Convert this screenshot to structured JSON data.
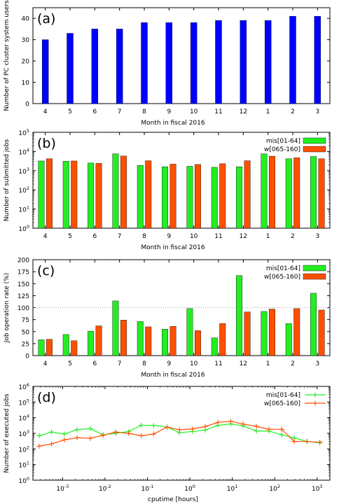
{
  "chart_data": [
    {
      "type": "bar",
      "panel_label": "(a)",
      "xlabel": "Month in fiscal 2016",
      "ylabel": "Number of PC cluster system users",
      "ylim": [
        0,
        45
      ],
      "yticks": [
        0,
        10,
        20,
        30,
        40
      ],
      "grid": false,
      "categories": [
        "4",
        "5",
        "6",
        "7",
        "8",
        "9",
        "10",
        "11",
        "12",
        "1",
        "2",
        "3"
      ],
      "series": [
        {
          "values": [
            30,
            33,
            35,
            35,
            38,
            38,
            38,
            39,
            39,
            39,
            41,
            41
          ],
          "color": "#0000ff"
        }
      ]
    },
    {
      "type": "bar",
      "panel_label": "(b)",
      "xlabel": "Month in fiscal 2016",
      "ylabel": "Number of submitted jobs",
      "yscale": "log",
      "ylim": [
        1,
        100000
      ],
      "yticks": [
        1,
        10,
        100,
        1000,
        10000,
        100000
      ],
      "ytick_labels": [
        [
          "10",
          "0"
        ],
        [
          "10",
          "1"
        ],
        [
          "10",
          "2"
        ],
        [
          "10",
          "3"
        ],
        [
          "10",
          "4"
        ],
        [
          "10",
          "5"
        ]
      ],
      "legend_position": "top-right",
      "grid": false,
      "categories": [
        "4",
        "5",
        "6",
        "7",
        "8",
        "9",
        "10",
        "11",
        "12",
        "1",
        "2",
        "3"
      ],
      "series": [
        {
          "name": "mis[01-64]",
          "color": "#22ee22",
          "values": [
            3200,
            3100,
            2500,
            7500,
            1900,
            1600,
            1700,
            1500,
            1600,
            7500,
            4200,
            5500
          ]
        },
        {
          "name": "w[065-160]",
          "color": "#ff4f00",
          "values": [
            4200,
            3200,
            2400,
            5800,
            3300,
            2200,
            2100,
            2300,
            3300,
            5700,
            4700,
            4200
          ]
        }
      ]
    },
    {
      "type": "bar",
      "panel_label": "(c)",
      "xlabel": "Month in fiscal 2016",
      "ylabel": "Job operation rate (%)",
      "ylim": [
        0,
        200
      ],
      "yticks": [
        0,
        25,
        50,
        75,
        100,
        125,
        150,
        175,
        200
      ],
      "reference_line": 100,
      "legend_position": "top-right",
      "grid": false,
      "categories": [
        "4",
        "5",
        "6",
        "7",
        "8",
        "9",
        "10",
        "11",
        "12",
        "1",
        "2",
        "3"
      ],
      "series": [
        {
          "name": "mis[01-64]",
          "color": "#22ee22",
          "values": [
            33,
            44,
            51,
            114,
            71,
            55,
            98,
            37,
            167,
            92,
            67,
            130
          ]
        },
        {
          "name": "w[065-160]",
          "color": "#ff4f00",
          "values": [
            34,
            31,
            62,
            74,
            60,
            61,
            52,
            67,
            91,
            97,
            98,
            95
          ]
        }
      ]
    },
    {
      "type": "line",
      "panel_label": "(d)",
      "xlabel": "cputime [hours]",
      "ylabel": "Number of executed jobs",
      "xscale": "log",
      "yscale": "log",
      "xlim": [
        0.0002,
        2000
      ],
      "ylim": [
        1,
        1000000
      ],
      "xticks": [
        0.001,
        0.01,
        0.1,
        1,
        10,
        100,
        1000
      ],
      "xtick_labels": [
        [
          "10",
          "-3"
        ],
        [
          "10",
          "-2"
        ],
        [
          "10",
          "-1"
        ],
        [
          "10",
          "0"
        ],
        [
          "10",
          "1"
        ],
        [
          "10",
          "2"
        ],
        [
          "10",
          "3"
        ]
      ],
      "yticks": [
        1,
        10,
        100,
        1000,
        10000,
        100000,
        1000000
      ],
      "ytick_labels": [
        [
          "10",
          "0"
        ],
        [
          "10",
          "1"
        ],
        [
          "10",
          "2"
        ],
        [
          "10",
          "3"
        ],
        [
          "10",
          "4"
        ],
        [
          "10",
          "5"
        ],
        [
          "10",
          "6"
        ]
      ],
      "legend_position": "top-right",
      "grid": false,
      "series": [
        {
          "name": "mis[01-64]",
          "color": "#22ee22",
          "x": [
            0.00028,
            0.00055,
            0.0011,
            0.0022,
            0.0045,
            0.009,
            0.018,
            0.036,
            0.072,
            0.14,
            0.29,
            0.57,
            1.15,
            2.3,
            4.6,
            9.2,
            18,
            37,
            73,
            146,
            290,
            580,
            1160
          ],
          "y": [
            700,
            1200,
            900,
            1700,
            2000,
            800,
            1000,
            1300,
            3300,
            3200,
            2500,
            1100,
            1300,
            1600,
            3200,
            4000,
            3000,
            1400,
            1400,
            800,
            500,
            300,
            250
          ]
        },
        {
          "name": "w[065-160]",
          "color": "#ff4f00",
          "x": [
            0.00028,
            0.00055,
            0.0011,
            0.0022,
            0.0045,
            0.009,
            0.018,
            0.036,
            0.072,
            0.14,
            0.29,
            0.57,
            1.15,
            2.3,
            4.6,
            9.2,
            18,
            37,
            73,
            146,
            290,
            580,
            1160
          ],
          "y": [
            150,
            210,
            380,
            520,
            480,
            750,
            1200,
            1000,
            700,
            900,
            2500,
            1700,
            1900,
            2700,
            5000,
            5800,
            3900,
            2800,
            1800,
            1800,
            300,
            300,
            270
          ]
        }
      ]
    }
  ]
}
